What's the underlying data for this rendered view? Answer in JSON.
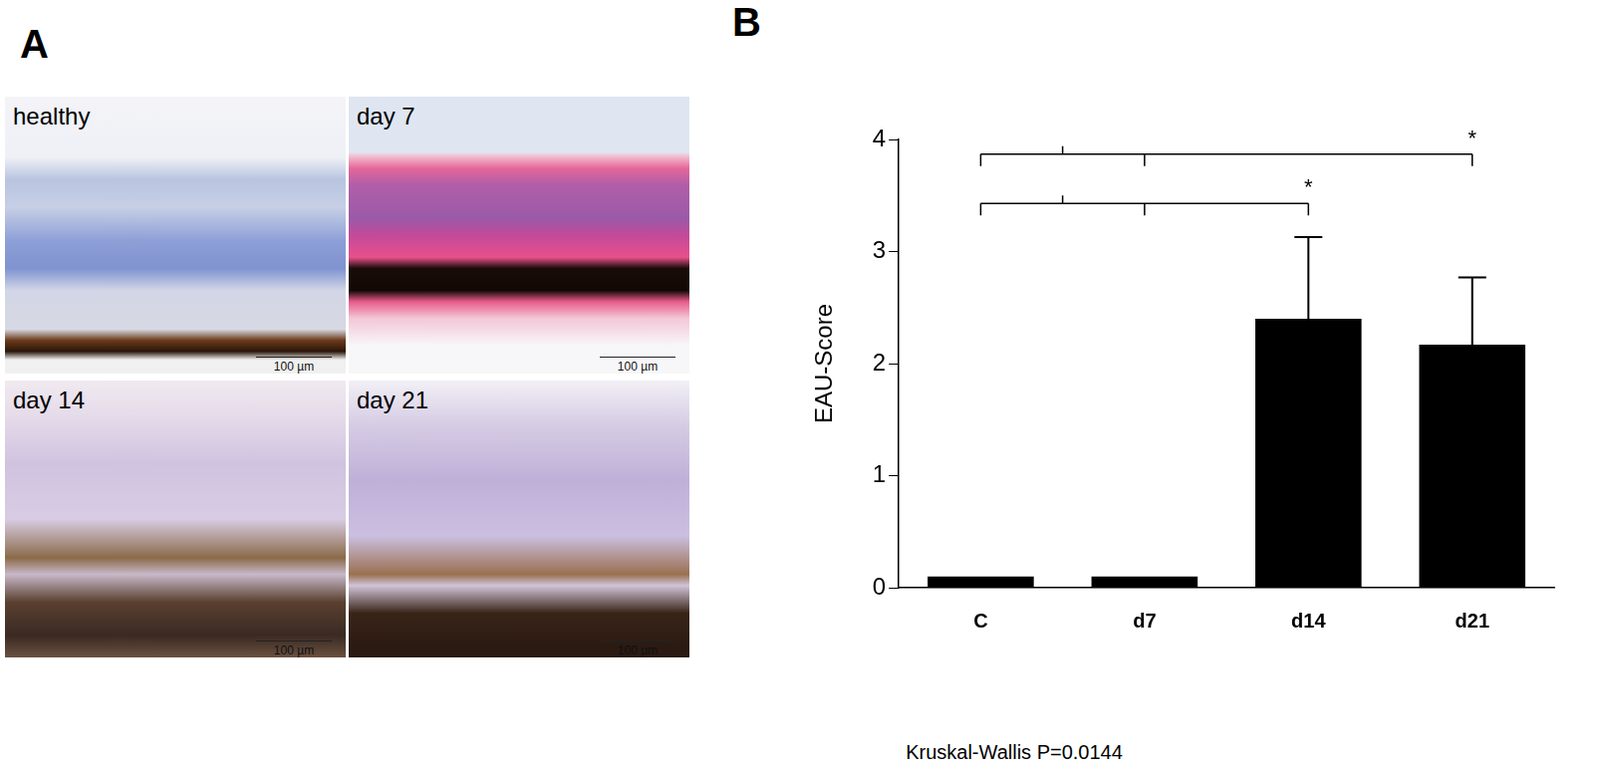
{
  "panel_labels": [
    "A",
    "B"
  ],
  "micrographs": [
    {
      "label": "healthy",
      "scale_bar": "100 µm"
    },
    {
      "label": "day 7",
      "scale_bar": "100 µm"
    },
    {
      "label": "day 14",
      "scale_bar": "100 µm"
    },
    {
      "label": "day 21",
      "scale_bar": "100 µm"
    }
  ],
  "chart_data": {
    "type": "bar",
    "y_label": "EAU-Score",
    "categories": [
      "C",
      "d7",
      "d14",
      "d21"
    ],
    "values": [
      0.1,
      0.1,
      2.4,
      2.17
    ],
    "errors": [
      0,
      0,
      0.73,
      0.6
    ],
    "color": "#000000",
    "ylim": [
      0,
      4
    ],
    "yticks": [
      0,
      1,
      2,
      3,
      4
    ],
    "grid": false,
    "significance": [
      {
        "from": [
          "C",
          "d7"
        ],
        "to": "d14",
        "y": 3.43,
        "label": "*"
      },
      {
        "from": [
          "C",
          "d7"
        ],
        "to": "d21",
        "y": 3.87,
        "label": "*"
      }
    ],
    "note": "Kruskal-Wallis P=0.0144"
  }
}
